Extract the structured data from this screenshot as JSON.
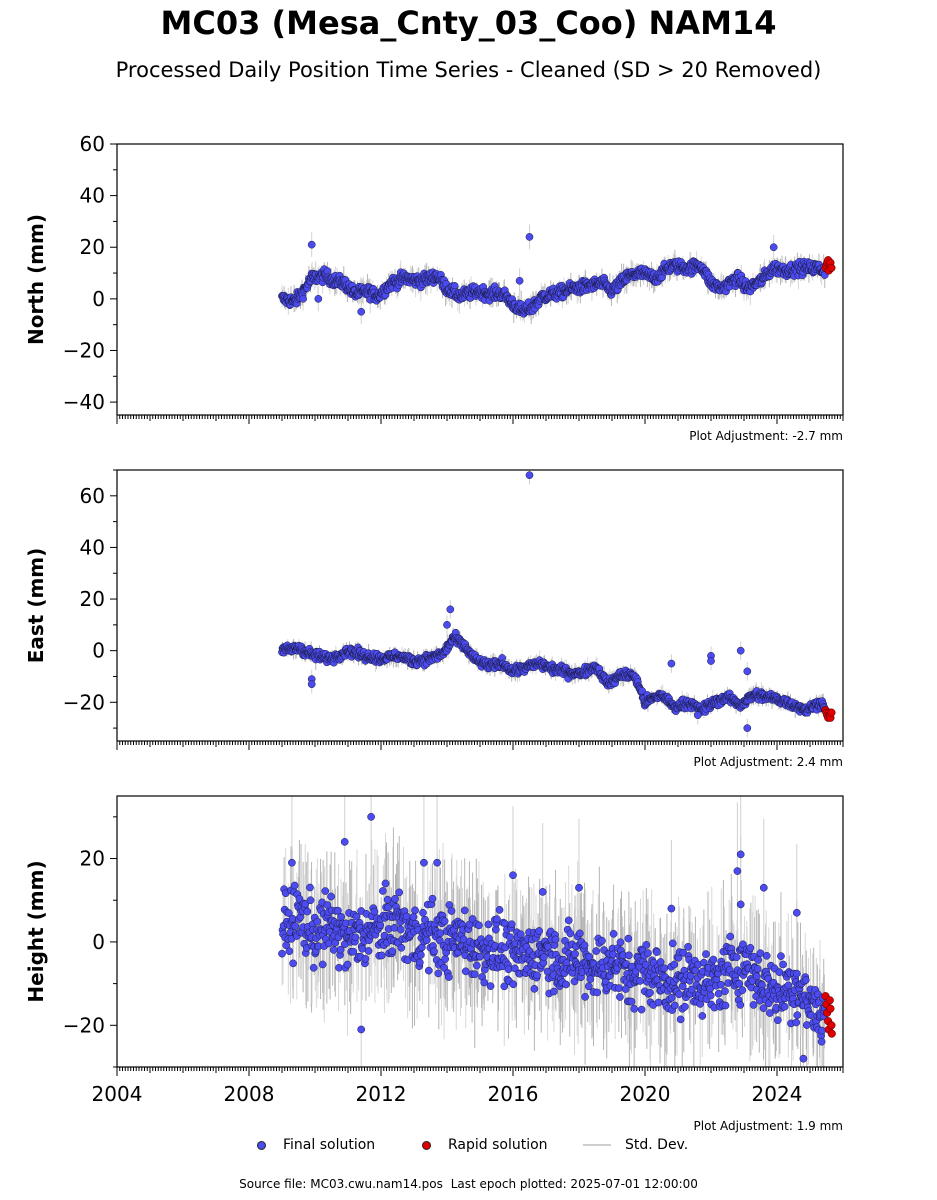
{
  "title": "MC03 (Mesa_Cnty_03_Coo) NAM14",
  "subtitle": "Processed Daily Position Time Series - Cleaned (SD > 20 Removed)",
  "colors": {
    "final": "#4b4bf0",
    "rapid": "#e00000",
    "std": "#c8c8c8"
  },
  "legend": {
    "final": "Final solution",
    "rapid": "Rapid solution",
    "std": "Std. Dev."
  },
  "source": {
    "file": "Source file: MC03.cwu.nam14.pos",
    "last_epoch": "Last epoch plotted: 2025-07-01 12:00:00"
  },
  "chart_data": [
    {
      "type": "scatter",
      "ylabel": "North (mm)",
      "ylim": [
        -45,
        60
      ],
      "yticks": [
        -40,
        -20,
        0,
        20,
        40,
        60
      ],
      "xlim": [
        2004,
        2026
      ],
      "adjustment": "Plot Adjustment: -2.7 mm",
      "series": [
        {
          "name": "Final solution",
          "trend": [
            [
              2009.0,
              0
            ],
            [
              2009.4,
              -1
            ],
            [
              2009.7,
              4
            ],
            [
              2009.9,
              8
            ],
            [
              2010.3,
              9
            ],
            [
              2010.6,
              7
            ],
            [
              2010.9,
              6
            ],
            [
              2011.2,
              2
            ],
            [
              2011.6,
              3
            ],
            [
              2011.9,
              1
            ],
            [
              2012.3,
              6
            ],
            [
              2012.7,
              8
            ],
            [
              2013.2,
              7
            ],
            [
              2013.7,
              9
            ],
            [
              2014.0,
              4
            ],
            [
              2014.4,
              1
            ],
            [
              2014.9,
              3
            ],
            [
              2015.3,
              2
            ],
            [
              2015.7,
              2
            ],
            [
              2016.0,
              -2
            ],
            [
              2016.3,
              -5
            ],
            [
              2016.6,
              -3
            ],
            [
              2016.9,
              1
            ],
            [
              2017.3,
              2
            ],
            [
              2017.8,
              4
            ],
            [
              2018.3,
              5
            ],
            [
              2018.7,
              6
            ],
            [
              2019.0,
              3
            ],
            [
              2019.5,
              9
            ],
            [
              2019.9,
              10
            ],
            [
              2020.3,
              8
            ],
            [
              2020.8,
              13
            ],
            [
              2021.3,
              12
            ],
            [
              2021.7,
              13
            ],
            [
              2022.0,
              6
            ],
            [
              2022.3,
              4
            ],
            [
              2022.8,
              8
            ],
            [
              2023.1,
              4
            ],
            [
              2023.5,
              7
            ],
            [
              2023.9,
              12
            ],
            [
              2024.3,
              11
            ],
            [
              2024.7,
              12
            ],
            [
              2025.2,
              12
            ],
            [
              2025.45,
              11
            ]
          ],
          "noise": 1.6,
          "outliers": [
            [
              2009.9,
              21
            ],
            [
              2010.1,
              0
            ],
            [
              2011.4,
              -5
            ],
            [
              2016.5,
              24
            ],
            [
              2016.2,
              7
            ],
            [
              2023.9,
              20
            ]
          ]
        },
        {
          "name": "Rapid solution",
          "x": [
            2025.47,
            2025.5,
            2025.52,
            2025.55,
            2025.57,
            2025.6,
            2025.62,
            2025.65
          ],
          "y": [
            12,
            13,
            14,
            15,
            11,
            13,
            14,
            12
          ]
        }
      ]
    },
    {
      "type": "scatter",
      "ylabel": "East (mm)",
      "ylim": [
        -35,
        70
      ],
      "yticks": [
        -20,
        0,
        20,
        40,
        60
      ],
      "xlim": [
        2004,
        2026
      ],
      "adjustment": "Plot Adjustment: 2.4 mm",
      "series": [
        {
          "name": "Final solution",
          "trend": [
            [
              2009.0,
              0
            ],
            [
              2009.5,
              1
            ],
            [
              2010.0,
              -2
            ],
            [
              2010.5,
              -3
            ],
            [
              2011.0,
              0
            ],
            [
              2011.5,
              -2
            ],
            [
              2012.0,
              -3
            ],
            [
              2012.5,
              -2
            ],
            [
              2013.0,
              -4
            ],
            [
              2013.5,
              -3
            ],
            [
              2013.9,
              -1
            ],
            [
              2014.2,
              5
            ],
            [
              2014.5,
              2
            ],
            [
              2014.9,
              -4
            ],
            [
              2015.3,
              -6
            ],
            [
              2015.7,
              -5
            ],
            [
              2016.0,
              -8
            ],
            [
              2016.5,
              -6
            ],
            [
              2016.8,
              -5
            ],
            [
              2017.2,
              -7
            ],
            [
              2017.6,
              -8
            ],
            [
              2018.0,
              -9
            ],
            [
              2018.5,
              -6
            ],
            [
              2018.9,
              -13
            ],
            [
              2019.3,
              -9
            ],
            [
              2019.7,
              -10
            ],
            [
              2020.0,
              -20
            ],
            [
              2020.5,
              -17
            ],
            [
              2020.9,
              -22
            ],
            [
              2021.3,
              -20
            ],
            [
              2021.7,
              -23
            ],
            [
              2022.1,
              -20
            ],
            [
              2022.5,
              -18
            ],
            [
              2022.9,
              -21
            ],
            [
              2023.3,
              -17
            ],
            [
              2023.7,
              -18
            ],
            [
              2024.1,
              -19
            ],
            [
              2024.5,
              -21
            ],
            [
              2024.9,
              -23
            ],
            [
              2025.3,
              -20
            ],
            [
              2025.45,
              -22
            ]
          ],
          "noise": 1.2,
          "outliers": [
            [
              2009.9,
              -11
            ],
            [
              2009.9,
              -13
            ],
            [
              2014.0,
              10
            ],
            [
              2014.1,
              16
            ],
            [
              2016.5,
              68
            ],
            [
              2020.8,
              -5
            ],
            [
              2022.0,
              -2
            ],
            [
              2022.0,
              -4
            ],
            [
              2022.9,
              0
            ],
            [
              2023.1,
              -8
            ],
            [
              2023.1,
              -30
            ],
            [
              2021.6,
              -25
            ]
          ]
        },
        {
          "name": "Rapid solution",
          "x": [
            2025.47,
            2025.5,
            2025.52,
            2025.55,
            2025.57,
            2025.6,
            2025.62,
            2025.65
          ],
          "y": [
            -23,
            -24,
            -25,
            -26,
            -24,
            -25,
            -26,
            -24
          ]
        }
      ]
    },
    {
      "type": "scatter",
      "ylabel": "Height (mm)",
      "ylim": [
        -30,
        35
      ],
      "yticks": [
        -20,
        0,
        20
      ],
      "xlim": [
        2004,
        2026
      ],
      "xticks": [
        2004,
        2008,
        2012,
        2016,
        2020,
        2024
      ],
      "adjustment": "Plot Adjustment: 1.9 mm",
      "series": [
        {
          "name": "Final solution",
          "trend": [
            [
              2009.0,
              3
            ],
            [
              2009.5,
              6
            ],
            [
              2010.0,
              2
            ],
            [
              2010.5,
              4
            ],
            [
              2011.0,
              0
            ],
            [
              2011.5,
              2
            ],
            [
              2012.0,
              3
            ],
            [
              2012.5,
              5
            ],
            [
              2013.0,
              1
            ],
            [
              2013.5,
              2
            ],
            [
              2014.0,
              0
            ],
            [
              2014.5,
              1
            ],
            [
              2015.0,
              -2
            ],
            [
              2015.5,
              -1
            ],
            [
              2016.0,
              -4
            ],
            [
              2016.5,
              -3
            ],
            [
              2017.0,
              -2
            ],
            [
              2017.5,
              -5
            ],
            [
              2018.0,
              -4
            ],
            [
              2018.5,
              -6
            ],
            [
              2019.0,
              -5
            ],
            [
              2019.5,
              -8
            ],
            [
              2020.0,
              -7
            ],
            [
              2020.5,
              -9
            ],
            [
              2021.0,
              -10
            ],
            [
              2021.5,
              -8
            ],
            [
              2022.0,
              -11
            ],
            [
              2022.5,
              -7
            ],
            [
              2023.0,
              -5
            ],
            [
              2023.5,
              -9
            ],
            [
              2024.0,
              -12
            ],
            [
              2024.5,
              -10
            ],
            [
              2025.0,
              -15
            ],
            [
              2025.45,
              -18
            ]
          ],
          "noise": 5.5,
          "outliers": [
            [
              2009.3,
              19
            ],
            [
              2010.9,
              24
            ],
            [
              2011.4,
              -21
            ],
            [
              2011.7,
              30
            ],
            [
              2013.3,
              19
            ],
            [
              2013.7,
              19
            ],
            [
              2016.0,
              16
            ],
            [
              2016.9,
              12
            ],
            [
              2018.0,
              13
            ],
            [
              2020.8,
              8
            ],
            [
              2022.8,
              17
            ],
            [
              2022.9,
              21
            ],
            [
              2022.9,
              9
            ],
            [
              2023.6,
              13
            ],
            [
              2024.6,
              7
            ],
            [
              2024.8,
              -28
            ]
          ]
        },
        {
          "name": "Rapid solution",
          "x": [
            2025.47,
            2025.5,
            2025.52,
            2025.55,
            2025.57,
            2025.6,
            2025.62,
            2025.65,
            2025.66
          ],
          "y": [
            -13,
            -15,
            -17,
            -19,
            -21,
            -14,
            -16,
            -20,
            -22
          ]
        }
      ]
    }
  ]
}
